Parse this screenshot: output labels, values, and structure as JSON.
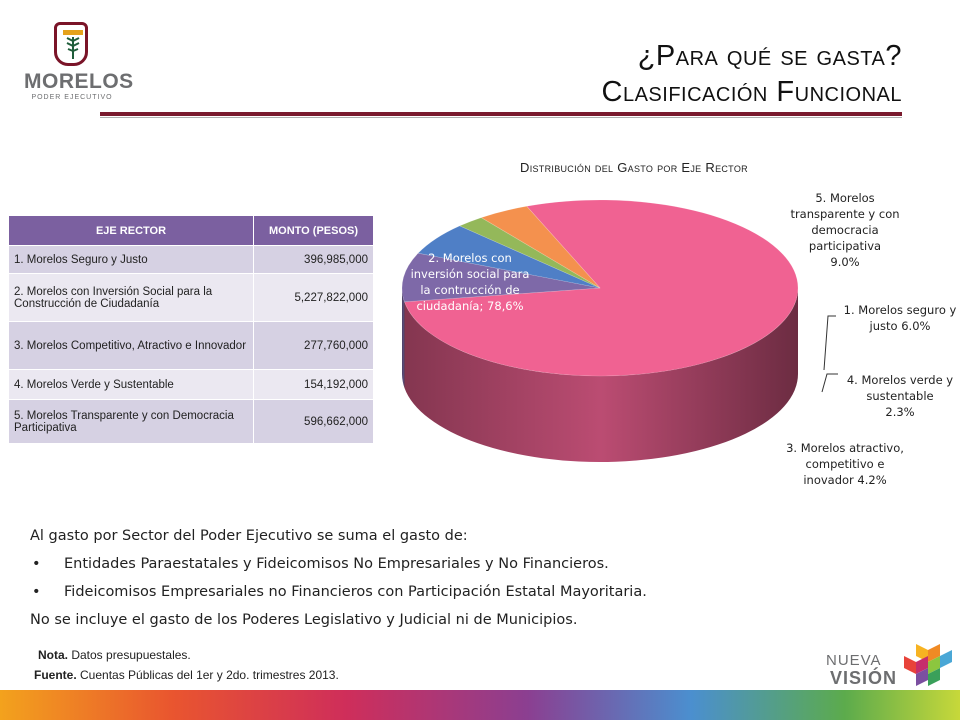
{
  "logo": {
    "name": "MORELOS",
    "sub": "PODER EJECUTIVO"
  },
  "title": {
    "line1": "¿Para qué se gasta?",
    "line2": "Clasificación Funcional"
  },
  "table": {
    "headers": [
      "EJE RECTOR",
      "MONTO (PESOS)"
    ],
    "rows": [
      {
        "eje": "1. Morelos Seguro y Justo",
        "monto": "396,985,000"
      },
      {
        "eje": "2. Morelos con Inversión Social para la Construcción de Ciudadanía",
        "monto": "5,227,822,000"
      },
      {
        "eje": "3. Morelos Competitivo, Atractivo e Innovador",
        "monto": "277,760,000"
      },
      {
        "eje": "4. Morelos Verde y Sustentable",
        "monto": "154,192,000"
      },
      {
        "eje": "5. Morelos Transparente y con Democracia Participativa",
        "monto": "596,662,000"
      }
    ]
  },
  "chart_data": {
    "type": "pie",
    "title": "Distribución del Gasto por Eje Rector",
    "style": "3d",
    "slices": [
      {
        "label": "2. Morelos con inversión social para la contrucción de ciudadanía; 78,6%",
        "value": 78.6,
        "color": "#f06292"
      },
      {
        "label": "5. Morelos transparente y con democracia participativa 9.0%",
        "value": 9.0,
        "color": "#7e69a8"
      },
      {
        "label": "1. Morelos seguro y justo 6.0%",
        "value": 6.0,
        "color": "#4f7fc6"
      },
      {
        "label": "4. Morelos verde y sustentable 2.3%",
        "value": 2.3,
        "color": "#94b85a"
      },
      {
        "label": "3. Morelos atractivo, competitivo e inovador 4.2%",
        "value": 4.2,
        "color": "#f4914e"
      }
    ],
    "label_lines": [
      [
        "2. Morelos con",
        "inversión social para",
        "la contrucción de",
        "ciudadanía; 78,6%"
      ],
      [
        "5. Morelos",
        "transparente y con",
        "democracia",
        "participativa",
        "9.0%"
      ],
      [
        "1. Morelos seguro y",
        "justo 6.0%"
      ],
      [
        "4. Morelos verde y",
        "sustentable",
        "2.3%"
      ],
      [
        "3. Morelos atractivo,",
        "competitivo e",
        "inovador 4.2%"
      ]
    ]
  },
  "body": {
    "intro": "Al gasto por Sector del Poder Ejecutivo se suma el gasto de:",
    "bullets": [
      "Entidades Paraestatales y Fideicomisos No Empresariales y No Financieros.",
      "Fideicomisos Empresariales no Financieros con Participación Estatal Mayoritaria."
    ],
    "closing": "No se incluye el gasto de los  Poderes Legislativo y Judicial ni de Municipios."
  },
  "note": {
    "label": "Nota.",
    "text": " Datos presupuestales."
  },
  "source": {
    "label": "Fuente.",
    "text": " Cuentas Públicas del 1er y 2do. trimestres 2013."
  },
  "footer_logo": {
    "line1": "NUEVA",
    "line2": "VISIÓN"
  }
}
